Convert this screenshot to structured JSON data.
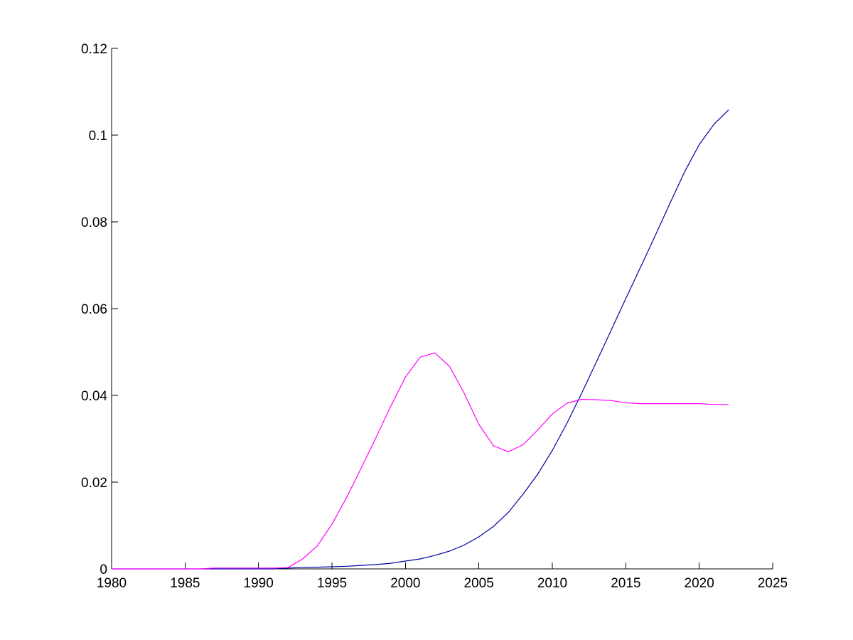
{
  "chart_data": {
    "type": "line",
    "title": "",
    "xlabel": "",
    "ylabel": "",
    "xlim": [
      1980,
      2025
    ],
    "ylim": [
      0,
      0.12
    ],
    "grid": false,
    "legend": "none",
    "x_ticks": [
      {
        "value": 1980,
        "label": "1980"
      },
      {
        "value": 1985,
        "label": "1985"
      },
      {
        "value": 1990,
        "label": "1990"
      },
      {
        "value": 1995,
        "label": "1995"
      },
      {
        "value": 2000,
        "label": "2000"
      },
      {
        "value": 2005,
        "label": "2005"
      },
      {
        "value": 2010,
        "label": "2010"
      },
      {
        "value": 2015,
        "label": "2015"
      },
      {
        "value": 2020,
        "label": "2020"
      },
      {
        "value": 2025,
        "label": "2025"
      }
    ],
    "y_ticks": [
      {
        "value": 0,
        "label": "0"
      },
      {
        "value": 0.02,
        "label": "0.02"
      },
      {
        "value": 0.04,
        "label": "0.04"
      },
      {
        "value": 0.06,
        "label": "0.06"
      },
      {
        "value": 0.08,
        "label": "0.08"
      },
      {
        "value": 0.1,
        "label": "0.1"
      },
      {
        "value": 0.12,
        "label": "0.12"
      }
    ],
    "x": [
      1980,
      1981,
      1982,
      1983,
      1984,
      1985,
      1986,
      1987,
      1988,
      1989,
      1990,
      1991,
      1992,
      1993,
      1994,
      1995,
      1996,
      1997,
      1998,
      1999,
      2000,
      2001,
      2002,
      2003,
      2004,
      2005,
      2006,
      2007,
      2008,
      2009,
      2010,
      2011,
      2012,
      2013,
      2014,
      2015,
      2016,
      2017,
      2018,
      2019,
      2020,
      2021,
      2022
    ],
    "series": [
      {
        "color": "#0000a0",
        "values": [
          0,
          0,
          0,
          0,
          0,
          0,
          0,
          0,
          0,
          0,
          0,
          0,
          0.0002,
          0.0003,
          0.0004,
          0.0005,
          0.0006,
          0.0008,
          0.001,
          0.0013,
          0.0018,
          0.0023,
          0.0031,
          0.0041,
          0.0055,
          0.0074,
          0.0098,
          0.013,
          0.0172,
          0.0218,
          0.0273,
          0.0336,
          0.0405,
          0.0477,
          0.055,
          0.0623,
          0.0695,
          0.0768,
          0.0842,
          0.0915,
          0.0978,
          0.1025,
          0.1058
        ]
      },
      {
        "color": "#ff00ff",
        "values": [
          0,
          0,
          0,
          0,
          0,
          0,
          0,
          0.0002,
          0.0002,
          0.0002,
          0.0002,
          0.0002,
          0.0003,
          0.0023,
          0.0053,
          0.0103,
          0.0165,
          0.0233,
          0.0303,
          0.0375,
          0.0442,
          0.0488,
          0.0498,
          0.0467,
          0.0405,
          0.0333,
          0.0284,
          0.027,
          0.0286,
          0.032,
          0.0357,
          0.0382,
          0.0391,
          0.039,
          0.0388,
          0.0383,
          0.0381,
          0.0381,
          0.0381,
          0.0381,
          0.0381,
          0.0379,
          0.0379
        ]
      }
    ]
  }
}
